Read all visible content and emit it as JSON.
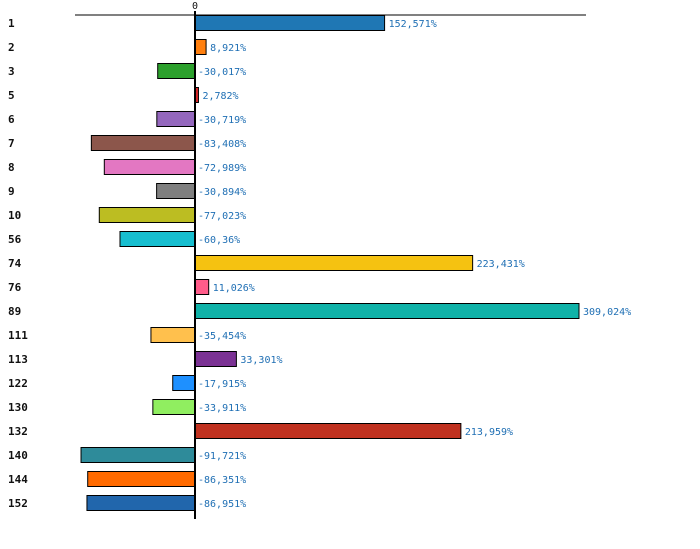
{
  "chart_data": {
    "type": "bar",
    "orientation": "horizontal",
    "title": "",
    "xlabel": "",
    "ylabel": "",
    "xlim": [
      -120,
      340
    ],
    "zero_tick_label": "0",
    "categories": [
      "1",
      "2",
      "3",
      "5",
      "6",
      "7",
      "8",
      "9",
      "10",
      "56",
      "74",
      "76",
      "89",
      "111",
      "113",
      "122",
      "130",
      "132",
      "140",
      "144",
      "152"
    ],
    "values": [
      152.571,
      8.921,
      -30.017,
      2.782,
      -30.719,
      -83.408,
      -72.989,
      -30.894,
      -77.023,
      -60.36,
      223.431,
      11.026,
      309.024,
      -35.454,
      33.301,
      -17.915,
      -33.911,
      213.959,
      -91.721,
      -86.351,
      -86.951
    ],
    "value_labels": [
      "152,571%",
      "8,921%",
      "-30,017%",
      "2,782%",
      "-30,719%",
      "-83,408%",
      "-72,989%",
      "-30,894%",
      "-77,023%",
      "-60,36%",
      "223,431%",
      "11,026%",
      "309,024%",
      "-35,454%",
      "33,301%",
      "-17,915%",
      "-33,911%",
      "213,959%",
      "-91,721%",
      "-86,351%",
      "-86,951%"
    ],
    "colors": [
      "#1f77b4",
      "#ff7f0e",
      "#2ca02c",
      "#d62728",
      "#9467bd",
      "#8c564b",
      "#e377c2",
      "#7f7f7f",
      "#bcbd22",
      "#17becf",
      "#f5c211",
      "#ff5c8a",
      "#10b2a8",
      "#ffc04d",
      "#7b3294",
      "#1e90ff",
      "#90ee60",
      "#c0311f",
      "#2e8b9a",
      "#ff6a00",
      "#2166ac"
    ]
  }
}
